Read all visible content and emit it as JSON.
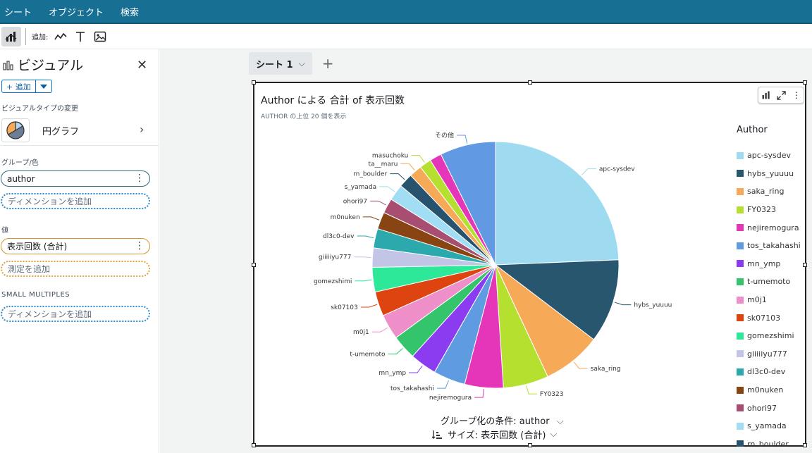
{
  "menu": {
    "items": [
      "シート",
      "オブジェクト",
      "検索"
    ]
  },
  "toolbar": {
    "add_label": "追加:"
  },
  "panel": {
    "title": "ビジュアル",
    "add_button": "+ 追加",
    "visual_type_label": "ビジュアルタイプの変更",
    "visual_type_name": "円グラフ",
    "group_color_label": "グループ/色",
    "group_field": "author",
    "add_dimension": "ディメンションを追加",
    "value_label": "値",
    "value_field": "表示回数 (合計)",
    "add_measure": "測定を追加",
    "small_multiples_label": "SMALL MULTIPLES",
    "add_dimension_sm": "ディメンションを追加"
  },
  "sheet": {
    "tab_label": "シート 1"
  },
  "visual": {
    "title": "Author による 合計 of 表示回数",
    "subtitle": "AUTHOR の上位 20 個を表示",
    "legend_title": "Author",
    "group_by": "グループ化の条件: author",
    "size_by": "サイズ: 表示回数 (合計)"
  },
  "chart_data": {
    "type": "pie",
    "title": "Author による 合計 of 表示回数",
    "subtitle": "AUTHOR の上位 20 個を表示",
    "legend_title": "Author",
    "legend_position": "right",
    "slices": [
      {
        "label": "apc-sysdev",
        "value": 25.0,
        "color": "#9fdbf0"
      },
      {
        "label": "hybs_yuuuu",
        "value": 11.3,
        "color": "#27566e"
      },
      {
        "label": "saka_ring",
        "value": 7.9,
        "color": "#f6a957"
      },
      {
        "label": "FY0323",
        "value": 6.1,
        "color": "#b5e030"
      },
      {
        "label": "nejiremogura",
        "value": 5.2,
        "color": "#e535b9"
      },
      {
        "label": "tos_takahashi",
        "value": 4.3,
        "color": "#5e9be0"
      },
      {
        "label": "mn_ymp",
        "value": 3.6,
        "color": "#8b3cf0"
      },
      {
        "label": "t-umemoto",
        "value": 3.3,
        "color": "#33c46c"
      },
      {
        "label": "m0j1",
        "value": 3.4,
        "color": "#ef8fca"
      },
      {
        "label": "sk07103",
        "value": 3.3,
        "color": "#dd4410"
      },
      {
        "label": "gomezshimi",
        "value": 3.3,
        "color": "#2ce898"
      },
      {
        "label": "giiiiiyu777",
        "value": 2.6,
        "color": "#c3c5e7"
      },
      {
        "label": "dl3c0-dev",
        "value": 2.6,
        "color": "#2ca9ac"
      },
      {
        "label": "m0nuken",
        "value": 2.3,
        "color": "#894413"
      },
      {
        "label": "ohori97",
        "value": 2.0,
        "color": "#a84e70"
      },
      {
        "label": "s_yamada",
        "value": 2.2,
        "color": "#a1def3"
      },
      {
        "label": "rn_boulder",
        "value": 1.9,
        "color": "#27536e"
      },
      {
        "label": "ta__maru",
        "value": 1.7,
        "color": "#f6a957"
      },
      {
        "label": "masuchoku",
        "value": 1.6,
        "color": "#b5e030"
      },
      {
        "label": "",
        "value": 1.6,
        "color": "#e535b9"
      },
      {
        "label": "その他",
        "value": 7.5,
        "color": "#6199e2"
      }
    ]
  },
  "legend_items": [
    {
      "label": "apc-sysdev",
      "color": "#9fdbf0"
    },
    {
      "label": "hybs_yuuuu",
      "color": "#27566e"
    },
    {
      "label": "saka_ring",
      "color": "#f6a957"
    },
    {
      "label": "FY0323",
      "color": "#b5e030"
    },
    {
      "label": "nejiremogura",
      "color": "#e535b9"
    },
    {
      "label": "tos_takahashi",
      "color": "#5e9be0"
    },
    {
      "label": "mn_ymp",
      "color": "#8b3cf0"
    },
    {
      "label": "t-umemoto",
      "color": "#33c46c"
    },
    {
      "label": "m0j1",
      "color": "#ef8fca"
    },
    {
      "label": "sk07103",
      "color": "#dd4410"
    },
    {
      "label": "gomezshimi",
      "color": "#2ce898"
    },
    {
      "label": "giiiiiyu777",
      "color": "#c3c5e7"
    },
    {
      "label": "dl3c0-dev",
      "color": "#2ca9ac"
    },
    {
      "label": "m0nuken",
      "color": "#894413"
    },
    {
      "label": "ohori97",
      "color": "#a84e70"
    },
    {
      "label": "s_yamada",
      "color": "#a1def3"
    },
    {
      "label": "rn_boulder",
      "color": "#27536e"
    }
  ],
  "colors": {
    "topbar": "#177093",
    "accent": "#0972d3"
  }
}
